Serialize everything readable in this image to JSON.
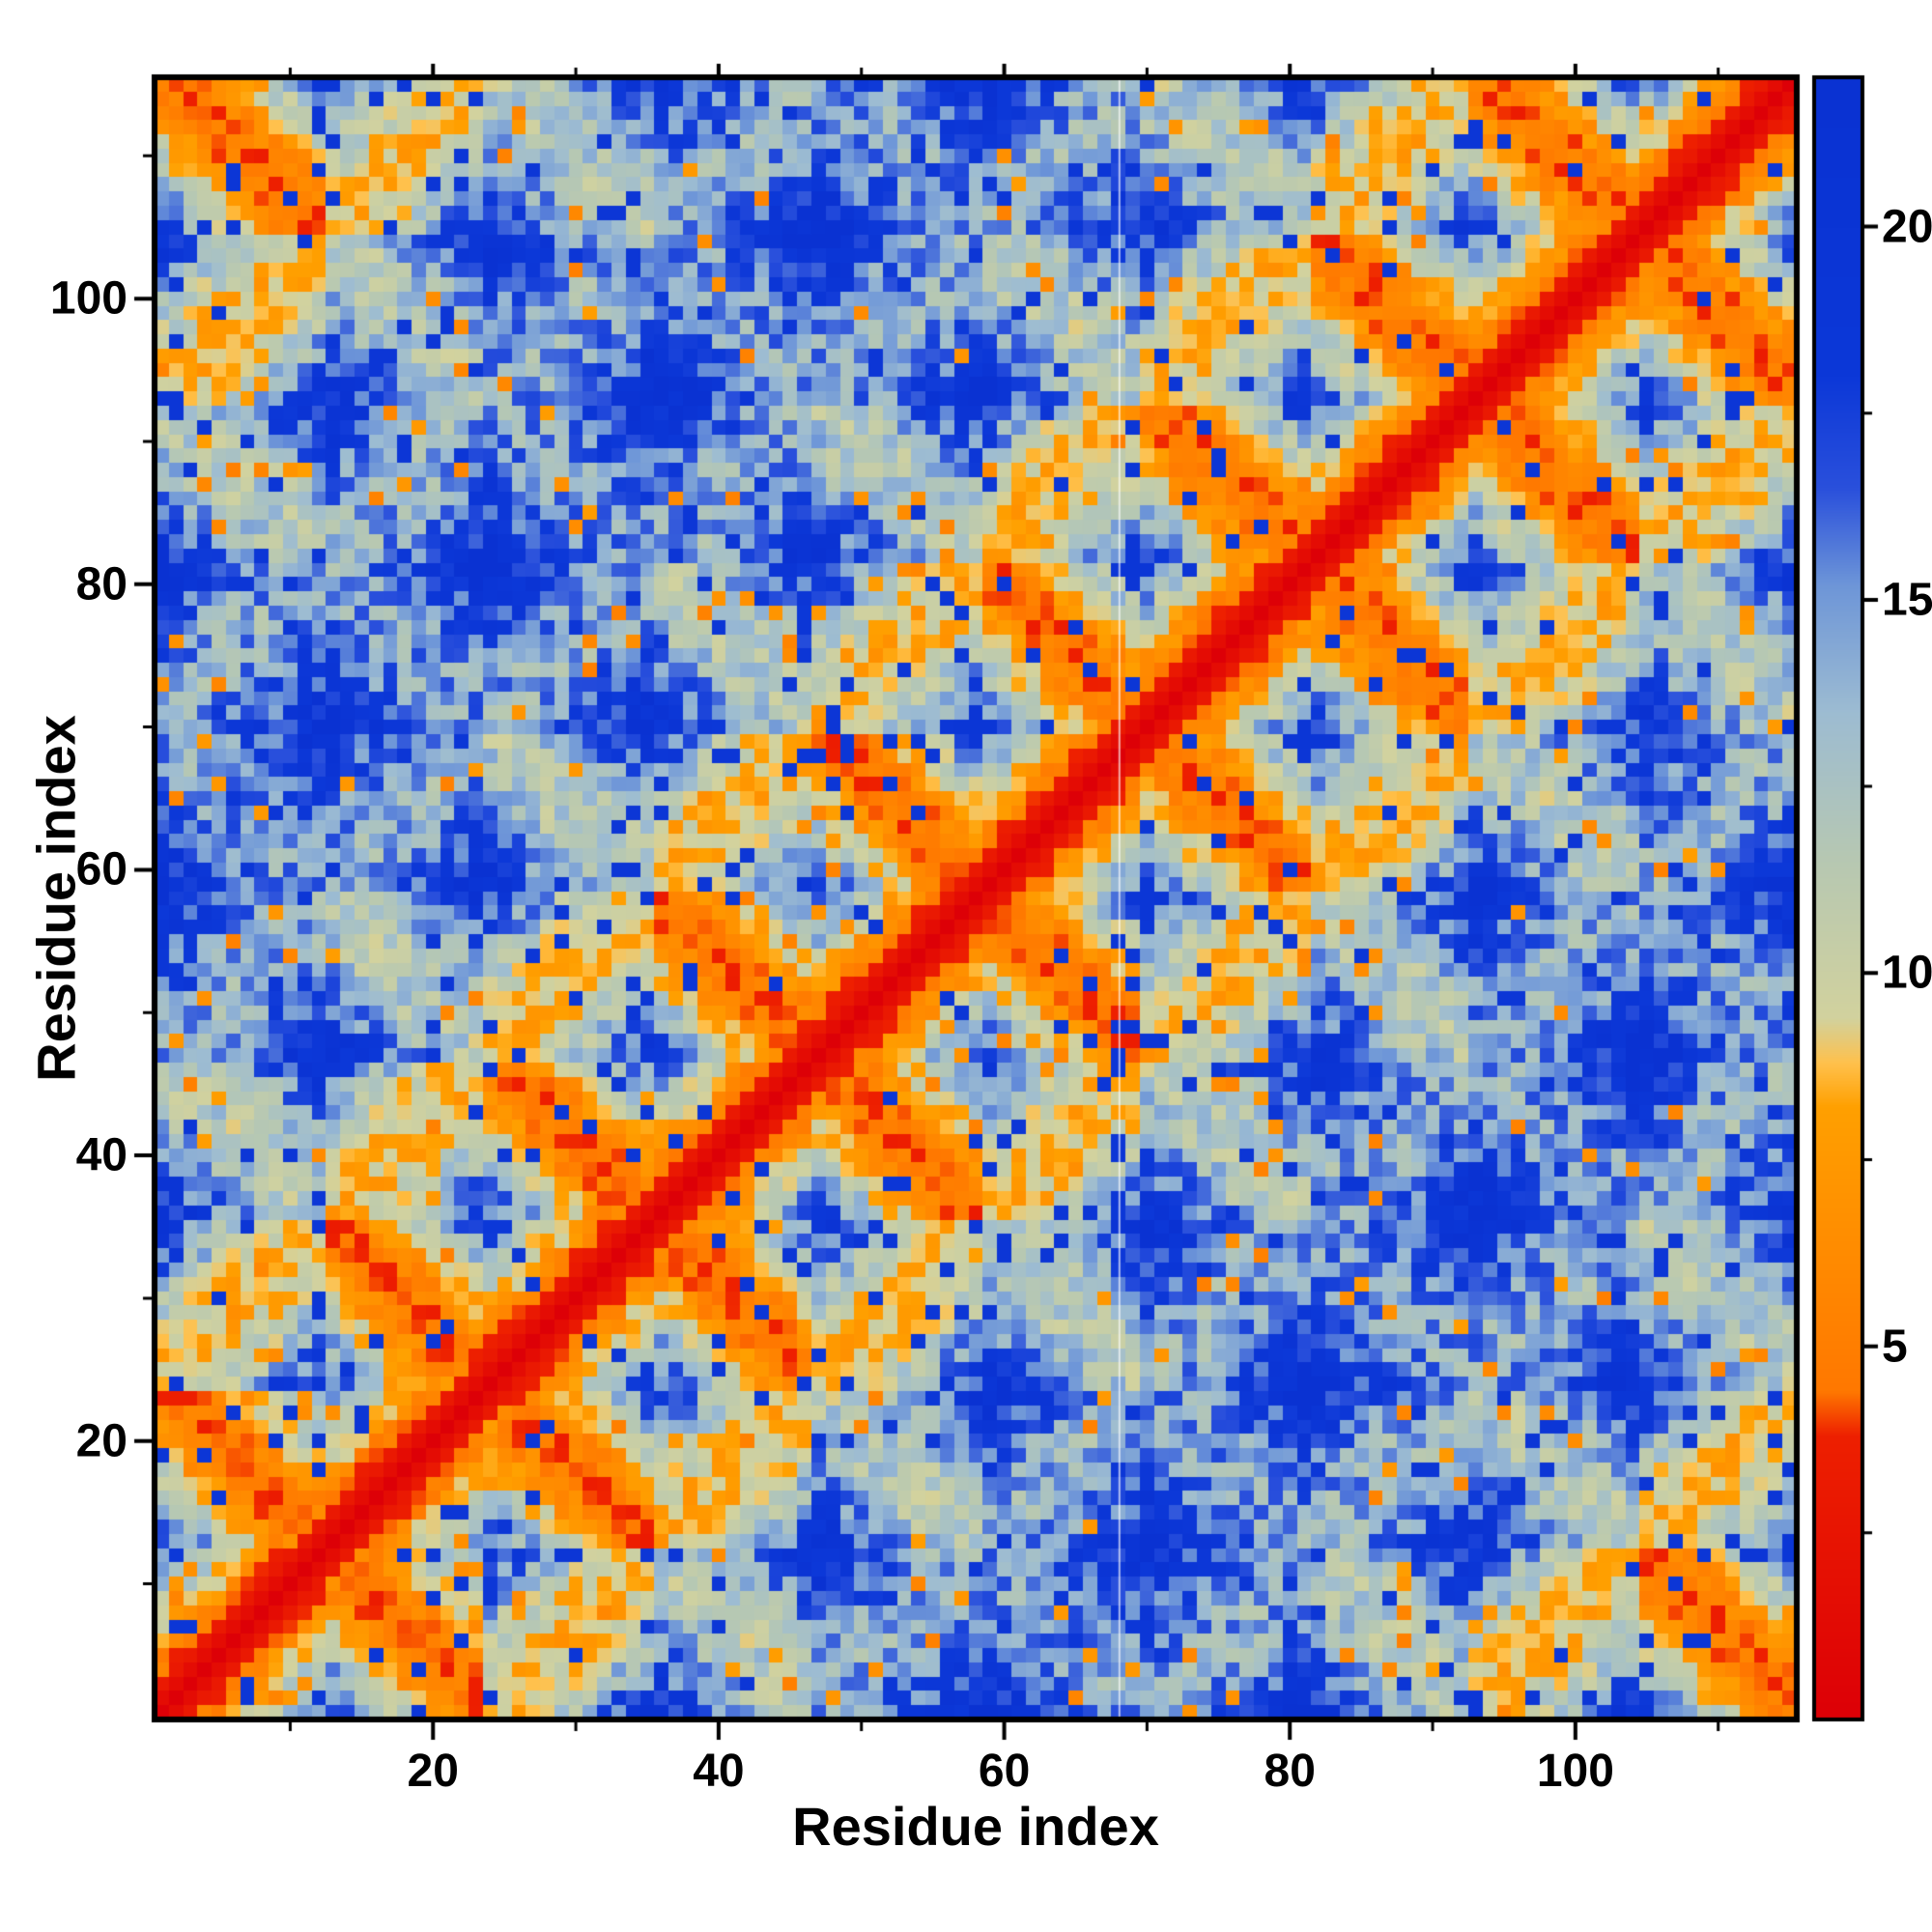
{
  "figure": {
    "background_color": "#ffffff",
    "frame_color": "#000000"
  },
  "chart_data": {
    "type": "heatmap",
    "title": "",
    "xlabel": "Residue index",
    "ylabel": "Residue index",
    "n_residues": 115,
    "x_range": [
      1,
      115
    ],
    "y_range": [
      1,
      115
    ],
    "x_ticks": [
      20,
      40,
      60,
      80,
      100
    ],
    "y_ticks": [
      20,
      40,
      60,
      80,
      100
    ],
    "minor_ticks": [
      10,
      30,
      50,
      70,
      90,
      110
    ],
    "grid": false,
    "legend": "none",
    "colorbar": {
      "position": "right",
      "value_range": [
        0,
        22
      ],
      "ticks": [
        5,
        10,
        15,
        20
      ],
      "minor_ticks": [
        2.5,
        7.5,
        12.5,
        17.5
      ]
    },
    "colormap_stops": [
      [
        0.0,
        "#dd0007"
      ],
      [
        3.8,
        "#ee2000"
      ],
      [
        4.4,
        "#ff7800"
      ],
      [
        8.2,
        "#ffa000"
      ],
      [
        8.8,
        "#ffc14d"
      ],
      [
        9.4,
        "#d2d29e"
      ],
      [
        11.5,
        "#b7c8b2"
      ],
      [
        13.5,
        "#9dbcd2"
      ],
      [
        15.2,
        "#6e96d8"
      ],
      [
        16.5,
        "#2a50dc"
      ],
      [
        18.0,
        "#0c38d8"
      ],
      [
        22.0,
        "#0a32d2"
      ]
    ],
    "pattern": {
      "description": "Symmetric residue-residue distance matrix of a 115-residue barrel-like fold: red main diagonal (short distances), orange antiparallel hairpin streaks crossing the diagonal, pale grey-green/blue contact X-motifs between repeated strands, deep blue (far) elsewhere, orange closure contacts in the far corners",
      "symmetric": true,
      "n_strands": 10,
      "strand_length": 11.5,
      "residue_spacing": 1.55,
      "barrel_radius": 7.2,
      "noise_amplitude": 3.0,
      "distance_cap": 22,
      "artifact_column": 68
    }
  }
}
